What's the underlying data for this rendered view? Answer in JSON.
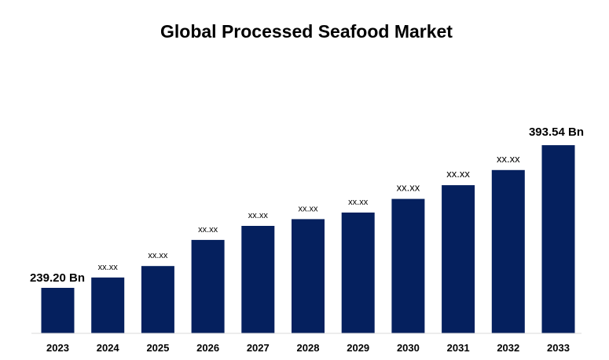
{
  "chart_data": {
    "type": "bar",
    "title": "Global Processed Seafood Market",
    "xlabel": "",
    "ylabel": "",
    "ylim": [
      0,
      420
    ],
    "grid": false,
    "legend": "none",
    "categories": [
      "2023",
      "2024",
      "2025",
      "2026",
      "2027",
      "2028",
      "2029",
      "2030",
      "2031",
      "2032",
      "2033"
    ],
    "values": [
      239.2,
      250.4,
      262.8,
      291.0,
      306.2,
      313.5,
      320.6,
      335.4,
      350.2,
      366.6,
      393.54
    ],
    "data_labels": [
      "239.20 Bn",
      "xx.xx",
      "xx.xx",
      "xx.xx",
      "xx.xx",
      "xx.xx",
      "xx.xx",
      "xx.xx",
      "xx.xx",
      "xx.xx",
      "393.54 Bn"
    ],
    "bar_color": "#05205e",
    "axis_color": "#d9d9d9"
  }
}
